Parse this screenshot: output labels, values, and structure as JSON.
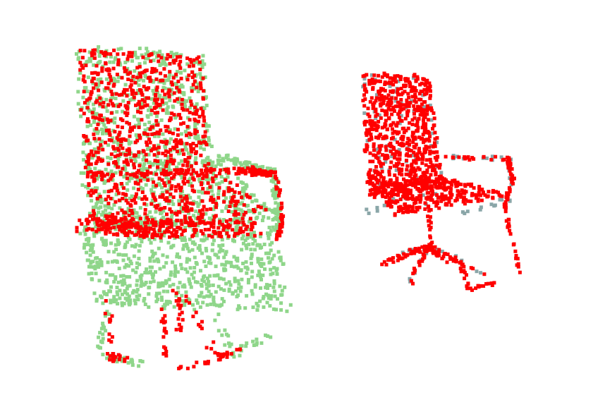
{
  "figure": {
    "background": "#ffffff",
    "panels": [
      {
        "name": "left-chair",
        "point_sets": [
          {
            "name": "green",
            "color": "#8fd68a"
          },
          {
            "name": "red",
            "color": "#ff0000"
          }
        ]
      },
      {
        "name": "right-chair",
        "point_sets": [
          {
            "name": "gray",
            "color": "#8aa6a8"
          },
          {
            "name": "red",
            "color": "#ff0000"
          }
        ]
      }
    ]
  }
}
